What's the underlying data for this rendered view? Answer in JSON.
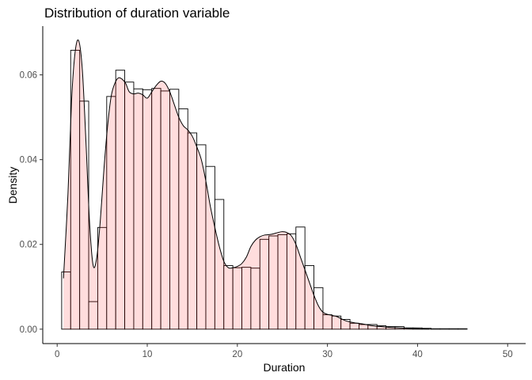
{
  "chart_data": {
    "type": "bar",
    "title": "Distribution of duration variable",
    "xlabel": "Duration",
    "ylabel": "Density",
    "xlim": [
      -1.6,
      52.0
    ],
    "ylim": [
      -0.0034,
      0.0715
    ],
    "grid": false,
    "legend": "none",
    "x_ticks": [
      0,
      10,
      20,
      30,
      40,
      50
    ],
    "x_tick_labels": [
      "0",
      "10",
      "20",
      "30",
      "40",
      "50"
    ],
    "y_ticks": [
      0.0,
      0.02,
      0.04,
      0.06
    ],
    "y_tick_labels": [
      "0.00",
      "0.02",
      "0.04",
      "0.06"
    ],
    "histogram": {
      "bin_width": 1,
      "bin_starts": [
        0.5,
        1.5,
        2.5,
        3.5,
        4.5,
        5.5,
        6.5,
        7.5,
        8.5,
        9.5,
        10.5,
        11.5,
        12.5,
        13.5,
        14.5,
        15.5,
        16.5,
        17.5,
        18.5,
        19.5,
        20.5,
        21.5,
        22.5,
        23.5,
        24.5,
        25.5,
        26.5,
        27.5,
        28.5,
        29.5,
        30.5,
        31.5,
        32.5,
        33.5,
        34.5,
        35.5,
        36.5,
        37.5,
        38.5,
        39.5,
        40.5,
        41.5,
        42.5,
        43.5,
        44.5,
        45.5,
        46.5,
        47.5,
        48.5
      ],
      "values": [
        0.0135,
        0.0658,
        0.0538,
        0.0065,
        0.024,
        0.0549,
        0.0611,
        0.0583,
        0.0567,
        0.0565,
        0.0568,
        0.0562,
        0.0566,
        0.052,
        0.0463,
        0.0435,
        0.0384,
        0.0306,
        0.015,
        0.0145,
        0.0146,
        0.0144,
        0.0212,
        0.022,
        0.0223,
        0.0225,
        0.0241,
        0.015,
        0.0098,
        0.0034,
        0.0031,
        0.0023,
        0.0014,
        0.0011,
        0.0011,
        0.0008,
        0.0006,
        0.0006,
        0.0003,
        0.0003,
        0.0002,
        0.0001,
        0.0001,
        0.0001,
        0.0001,
        0.0,
        0.0,
        0.0,
        0.0
      ],
      "fill": "#ffffff",
      "stroke": "#000000"
    },
    "density": {
      "x": [
        0.7,
        1.2,
        1.6,
        2.0,
        2.4,
        2.8,
        3.2,
        3.6,
        4.0,
        4.4,
        4.8,
        5.2,
        5.6,
        6.0,
        6.4,
        6.8,
        7.2,
        7.6,
        8.0,
        8.5,
        9.0,
        9.5,
        10.0,
        10.5,
        11.0,
        11.5,
        12.0,
        12.5,
        13.0,
        13.5,
        14.0,
        14.5,
        15.0,
        15.5,
        16.0,
        16.5,
        17.0,
        17.5,
        18.0,
        18.5,
        19.0,
        19.5,
        20.0,
        20.5,
        21.0,
        21.5,
        22.0,
        22.5,
        23.0,
        23.5,
        24.0,
        24.5,
        25.0,
        25.5,
        26.0,
        26.5,
        27.0,
        27.5,
        28.0,
        28.5,
        29.0,
        29.5,
        30.0,
        31.0,
        32.0,
        33.0,
        34.0,
        35.0,
        36.0,
        37.0,
        38.0,
        39.0,
        40.0,
        41.3
      ],
      "y": [
        0.012,
        0.032,
        0.054,
        0.0655,
        0.068,
        0.061,
        0.044,
        0.025,
        0.015,
        0.017,
        0.026,
        0.038,
        0.048,
        0.055,
        0.058,
        0.0593,
        0.059,
        0.058,
        0.056,
        0.0555,
        0.0557,
        0.0553,
        0.0545,
        0.056,
        0.0575,
        0.0585,
        0.058,
        0.056,
        0.053,
        0.05,
        0.048,
        0.047,
        0.0455,
        0.043,
        0.04,
        0.035,
        0.029,
        0.024,
        0.0195,
        0.016,
        0.0145,
        0.0145,
        0.0148,
        0.0155,
        0.017,
        0.0195,
        0.021,
        0.0218,
        0.0222,
        0.0223,
        0.0225,
        0.0228,
        0.023,
        0.0228,
        0.022,
        0.02,
        0.017,
        0.014,
        0.011,
        0.008,
        0.0055,
        0.004,
        0.0035,
        0.003,
        0.002,
        0.0015,
        0.0012,
        0.0008,
        0.0006,
        0.0004,
        0.0003,
        0.0002,
        0.0001,
        0.0
      ],
      "fill": "#ff000022",
      "stroke": "#000000"
    }
  }
}
